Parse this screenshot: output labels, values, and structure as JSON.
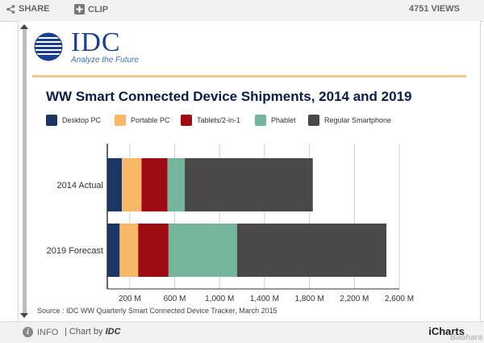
{
  "toolbar": {
    "share_label": "SHARE",
    "clip_label": "CLIP",
    "views": "4751 VIEWS"
  },
  "branding": {
    "logo_text": "IDC",
    "tagline": "Analyze the Future"
  },
  "footer": {
    "info_label": "INFO",
    "chart_by_prefix": "| Chart by",
    "chart_by_name": "IDC",
    "icharts": "iCharts",
    "watermark": "Baohara"
  },
  "colors": {
    "desktop_pc": "#1b3565",
    "portable_pc": "#f9b868",
    "tablets": "#9e0b13",
    "phablet": "#74b59c",
    "smartphone": "#4b4848"
  },
  "chart_data": {
    "type": "bar",
    "orientation": "horizontal",
    "stacked": true,
    "title": "WW Smart Connected Device Shipments, 2014 and 2019",
    "source": "Source : IDC WW Quarterly Smart Connected Device Tracker, March 2015",
    "categories": [
      "2014 Actual",
      "2019 Forecast"
    ],
    "series": [
      {
        "name": "Desktop PC",
        "color": "#1b3565",
        "values": [
          130,
          110
        ]
      },
      {
        "name": "Portable PC",
        "color": "#f9b868",
        "values": [
          175,
          165
        ]
      },
      {
        "name": "Tablets/2-in-1",
        "color": "#9e0b13",
        "values": [
          230,
          270
        ]
      },
      {
        "name": "Phablet",
        "color": "#74b59c",
        "values": [
          155,
          610
        ]
      },
      {
        "name": "Regular Smartphone",
        "color": "#4b4848",
        "values": [
          1140,
          1330
        ]
      }
    ],
    "x_ticks": [
      200,
      600,
      1000,
      1400,
      1800,
      2200,
      2600
    ],
    "x_tick_labels": [
      "200 M",
      "600 M",
      "1,000 M",
      "1,400 M",
      "1,800 M",
      "2,200 M",
      "2,600 M"
    ],
    "xlim": [
      0,
      2600
    ],
    "grid": true,
    "legend_position": "top"
  }
}
